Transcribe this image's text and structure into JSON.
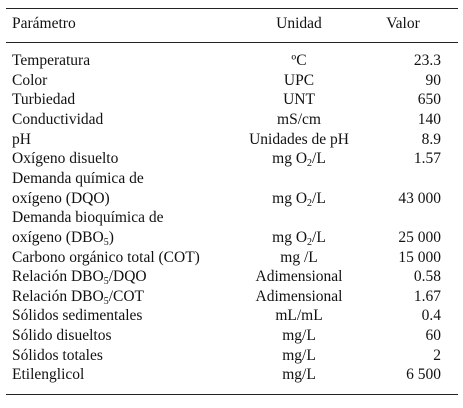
{
  "header": {
    "param": "Parámetro",
    "unit": "Unidad",
    "value": "Valor"
  },
  "rows": [
    {
      "param": [
        "Temperatura"
      ],
      "unit": [
        "ºC"
      ],
      "value": "23.3"
    },
    {
      "param": [
        "Color"
      ],
      "unit": [
        "UPC"
      ],
      "value": "90"
    },
    {
      "param": [
        "Turbiedad"
      ],
      "unit": [
        "UNT"
      ],
      "value": "650"
    },
    {
      "param": [
        "Conductividad"
      ],
      "unit": [
        "mS/cm"
      ],
      "value": "140"
    },
    {
      "param": [
        "pH"
      ],
      "unit": [
        "Unidades de pH"
      ],
      "value": "8.9"
    },
    {
      "param": [
        "Oxígeno disuelto"
      ],
      "unit": [
        "mg O",
        "2",
        "/L"
      ],
      "value": "1.57"
    },
    {
      "param": [
        "Demanda química de"
      ],
      "unit": [
        ""
      ],
      "value": ""
    },
    {
      "param": [
        "oxígeno (DQO)"
      ],
      "unit": [
        "mg O",
        "2",
        "/L"
      ],
      "value": "43 000"
    },
    {
      "param": [
        "Demanda bioquímica de"
      ],
      "unit": [
        ""
      ],
      "value": ""
    },
    {
      "param": [
        "oxígeno (DBO",
        "5",
        ")"
      ],
      "unit": [
        "mg O",
        "2",
        "/L"
      ],
      "value": "25 000"
    },
    {
      "param": [
        "Carbono orgánico total (COT)"
      ],
      "unit": [
        "mg /L"
      ],
      "value": "15 000"
    },
    {
      "param": [
        "Relación DBO",
        "5",
        "/DQO"
      ],
      "unit": [
        "Adimensional"
      ],
      "value": "0.58"
    },
    {
      "param": [
        "Relación DBO",
        "5",
        "/COT"
      ],
      "unit": [
        "Adimensional"
      ],
      "value": "1.67"
    },
    {
      "param": [
        "Sólidos sedimentales"
      ],
      "unit": [
        "mL/mL"
      ],
      "value": "0.4"
    },
    {
      "param": [
        "Sólido disueltos"
      ],
      "unit": [
        "mg/L"
      ],
      "value": "60"
    },
    {
      "param": [
        "Sólidos totales"
      ],
      "unit": [
        "mg/L"
      ],
      "value": "2"
    },
    {
      "param": [
        "Etilenglicol"
      ],
      "unit": [
        "mg/L"
      ],
      "value": "6 500"
    }
  ]
}
